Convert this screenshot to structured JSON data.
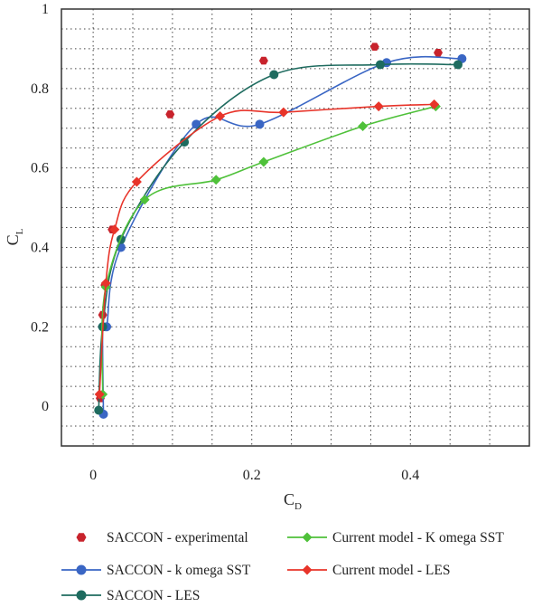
{
  "chart_data": {
    "type": "scatter",
    "xlabel": "C",
    "xlabel_sub": "D",
    "ylabel": "C",
    "ylabel_sub": "L",
    "xlim": [
      -0.04,
      0.55
    ],
    "ylim": [
      -0.1,
      1.0
    ],
    "xticks": [
      0,
      0.2,
      0.4
    ],
    "xtick_labels": [
      "0",
      "0.2",
      "0.4"
    ],
    "yticks": [
      0,
      0.2,
      0.4,
      0.6,
      0.8,
      1.0
    ],
    "ytick_labels": [
      "0",
      "0.2",
      "0.4",
      "0.6",
      "0.8",
      "1"
    ],
    "grid": true,
    "legend_position": "bottom",
    "series": [
      {
        "name": "SACCON - experimental",
        "color": "#c8232c",
        "marker": "hexagon",
        "line": false,
        "x": [
          0.009,
          0.012,
          0.015,
          0.024,
          0.097,
          0.215,
          0.355,
          0.435
        ],
        "y": [
          0.02,
          0.23,
          0.305,
          0.445,
          0.735,
          0.87,
          0.905,
          0.89
        ]
      },
      {
        "name": "SACCON - k omega SST",
        "color": "#3a66c4",
        "marker": "circle",
        "line": true,
        "x": [
          0.013,
          0.012,
          0.017,
          0.035,
          0.13,
          0.21,
          0.37,
          0.465
        ],
        "y": [
          -0.02,
          0.2,
          0.2,
          0.4,
          0.71,
          0.71,
          0.865,
          0.875
        ]
      },
      {
        "name": "SACCON - LES",
        "color": "#1e6b5f",
        "marker": "circle",
        "line": true,
        "x": [
          0.007,
          0.012,
          0.035,
          0.115,
          0.228,
          0.362,
          0.46
        ],
        "y": [
          -0.01,
          0.2,
          0.42,
          0.665,
          0.835,
          0.86,
          0.86
        ]
      },
      {
        "name": "Current model - K omega SST",
        "color": "#4fc13a",
        "marker": "diamond",
        "line": true,
        "x": [
          0.012,
          0.016,
          0.065,
          0.155,
          0.215,
          0.34,
          0.432
        ],
        "y": [
          0.03,
          0.3,
          0.52,
          0.57,
          0.615,
          0.705,
          0.755
        ]
      },
      {
        "name": "Current model - LES",
        "color": "#e8342a",
        "marker": "diamond",
        "line": true,
        "x": [
          0.008,
          0.016,
          0.027,
          0.055,
          0.16,
          0.24,
          0.36,
          0.43
        ],
        "y": [
          0.03,
          0.31,
          0.445,
          0.565,
          0.73,
          0.74,
          0.755,
          0.76
        ]
      }
    ]
  },
  "legend": {
    "items": [
      "SACCON - experimental",
      "Current model - K omega SST",
      "SACCON - k omega SST",
      "Current model - LES",
      "SACCON - LES"
    ]
  }
}
